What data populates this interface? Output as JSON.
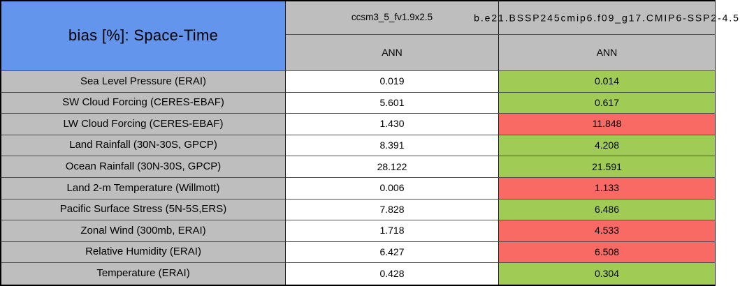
{
  "colors": {
    "title_bg": "#6495EC",
    "header_bg": "#BEBEBE",
    "label_bg": "#BEBEBE",
    "value_bg": "#FFFFFF",
    "better_green": "#A0CC55",
    "worse_red": "#FA6A64"
  },
  "chart_data": {
    "type": "table",
    "title": "bias [%]: Space-Time",
    "column_headers": [
      {
        "model": "ccsm3_5_fv1.9x2.5",
        "season": "ANN"
      },
      {
        "model": "b.e21.BSSP245cmip6.f09_g17.CMIP6-SSP2-4.5",
        "season": "ANN"
      }
    ],
    "rows": [
      {
        "label": "Sea Level Pressure (ERAI)",
        "values": [
          "0.019",
          "0.014"
        ],
        "comparison": "better",
        "highlight": "#A0CC55"
      },
      {
        "label": "SW Cloud Forcing (CERES-EBAF)",
        "values": [
          "5.601",
          "0.617"
        ],
        "comparison": "better",
        "highlight": "#A0CC55"
      },
      {
        "label": "LW Cloud Forcing (CERES-EBAF)",
        "values": [
          "1.430",
          "11.848"
        ],
        "comparison": "worse",
        "highlight": "#FA6A64"
      },
      {
        "label": "Land Rainfall (30N-30S, GPCP)",
        "values": [
          "8.391",
          "4.208"
        ],
        "comparison": "better",
        "highlight": "#A0CC55"
      },
      {
        "label": "Ocean Rainfall (30N-30S, GPCP)",
        "values": [
          "28.122",
          "21.591"
        ],
        "comparison": "better",
        "highlight": "#A0CC55"
      },
      {
        "label": "Land 2-m Temperature (Willmott)",
        "values": [
          "0.006",
          "1.133"
        ],
        "comparison": "worse",
        "highlight": "#FA6A64"
      },
      {
        "label": "Pacific Surface Stress (5N-5S,ERS)",
        "values": [
          "7.828",
          "6.486"
        ],
        "comparison": "better",
        "highlight": "#A0CC55"
      },
      {
        "label": "Zonal Wind (300mb, ERAI)",
        "values": [
          "1.718",
          "4.533"
        ],
        "comparison": "worse",
        "highlight": "#FA6A64"
      },
      {
        "label": "Relative Humidity (ERAI)",
        "values": [
          "6.427",
          "6.508"
        ],
        "comparison": "worse",
        "highlight": "#FA6A64"
      },
      {
        "label": "Temperature (ERAI)",
        "values": [
          "0.428",
          "0.304"
        ],
        "comparison": "better",
        "highlight": "#A0CC55"
      }
    ]
  }
}
